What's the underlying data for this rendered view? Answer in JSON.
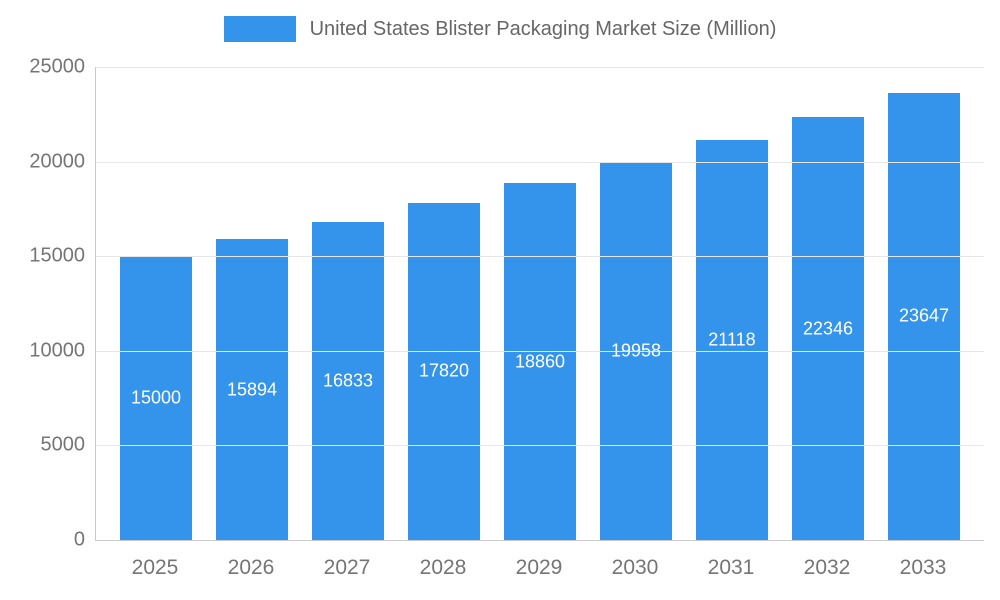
{
  "chart_data": {
    "type": "bar",
    "title": "United States Blister Packaging Market Size (Million)",
    "categories": [
      "2025",
      "2026",
      "2027",
      "2028",
      "2029",
      "2030",
      "2031",
      "2032",
      "2033"
    ],
    "values": [
      15000,
      15894,
      16833,
      17820,
      18860,
      19958,
      21118,
      22346,
      23647
    ],
    "xlabel": "",
    "ylabel": "",
    "ylim": [
      0,
      25000
    ],
    "y_ticks": [
      0,
      5000,
      10000,
      15000,
      20000,
      25000
    ],
    "grid": true,
    "legend_position": "top",
    "colors": {
      "bar": "#3493EB",
      "bar_value_label": "#ffffff",
      "axis_text": "#757575",
      "legend_text": "#666666",
      "gridline": "#e6e6e6",
      "axis_line": "#c9c9c9"
    }
  }
}
